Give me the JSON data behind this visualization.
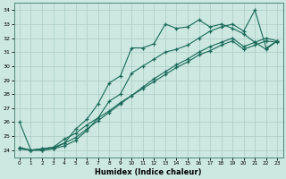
{
  "xlabel": "Humidex (Indice chaleur)",
  "bg_color": "#cce8e0",
  "line_color": "#1a6a5a",
  "grid_color": "#aaccc4",
  "series1_x": [
    0,
    1,
    2,
    3,
    4,
    5,
    6,
    7,
    8,
    9,
    10,
    11,
    12,
    13,
    14,
    15,
    16,
    17,
    18,
    19,
    20,
    21,
    22,
    23
  ],
  "series1_y": [
    24.1,
    24.0,
    24.1,
    24.2,
    24.8,
    25.2,
    25.8,
    26.3,
    26.8,
    27.4,
    27.9,
    28.4,
    28.9,
    29.4,
    29.9,
    30.3,
    30.8,
    31.1,
    31.5,
    31.8,
    31.2,
    31.5,
    31.8,
    31.7
  ],
  "series2_x": [
    0,
    1,
    2,
    3,
    4,
    5,
    6,
    7,
    8,
    9,
    10,
    11,
    12,
    13,
    14,
    15,
    16,
    17,
    18,
    19,
    20,
    21,
    22,
    23
  ],
  "series2_y": [
    24.1,
    24.0,
    24.1,
    24.2,
    24.5,
    24.9,
    25.5,
    26.1,
    26.7,
    27.3,
    27.9,
    28.5,
    29.1,
    29.6,
    30.1,
    30.5,
    31.0,
    31.4,
    31.7,
    32.0,
    31.4,
    31.7,
    32.0,
    31.8
  ],
  "series3_x": [
    0,
    1,
    2,
    3,
    4,
    5,
    6,
    7,
    8,
    9,
    10,
    11,
    12,
    13,
    14,
    15,
    16,
    17,
    18,
    19,
    20,
    21,
    22,
    23
  ],
  "series3_y": [
    26.0,
    24.0,
    24.0,
    24.1,
    24.5,
    25.5,
    26.2,
    27.3,
    28.8,
    29.3,
    31.3,
    31.3,
    31.6,
    33.0,
    32.7,
    32.8,
    33.3,
    32.8,
    33.0,
    32.7,
    32.3,
    31.7,
    31.2,
    31.8
  ],
  "series4_x": [
    0,
    1,
    2,
    3,
    4,
    5,
    6,
    7,
    8,
    9,
    10,
    11,
    12,
    13,
    14,
    15,
    16,
    17,
    18,
    19,
    20,
    21,
    22,
    23
  ],
  "series4_y": [
    24.2,
    24.0,
    24.0,
    24.1,
    24.3,
    24.7,
    25.4,
    26.3,
    27.5,
    28.0,
    29.5,
    30.0,
    30.5,
    31.0,
    31.2,
    31.5,
    32.0,
    32.5,
    32.8,
    33.0,
    32.5,
    34.0,
    31.3,
    31.8
  ],
  "xlim": [
    -0.5,
    23.5
  ],
  "ylim": [
    23.5,
    34.5
  ],
  "yticks": [
    24,
    25,
    26,
    27,
    28,
    29,
    30,
    31,
    32,
    33,
    34
  ],
  "xticks": [
    0,
    1,
    2,
    3,
    4,
    5,
    6,
    7,
    8,
    9,
    10,
    11,
    12,
    13,
    14,
    15,
    16,
    17,
    18,
    19,
    20,
    21,
    22,
    23
  ]
}
